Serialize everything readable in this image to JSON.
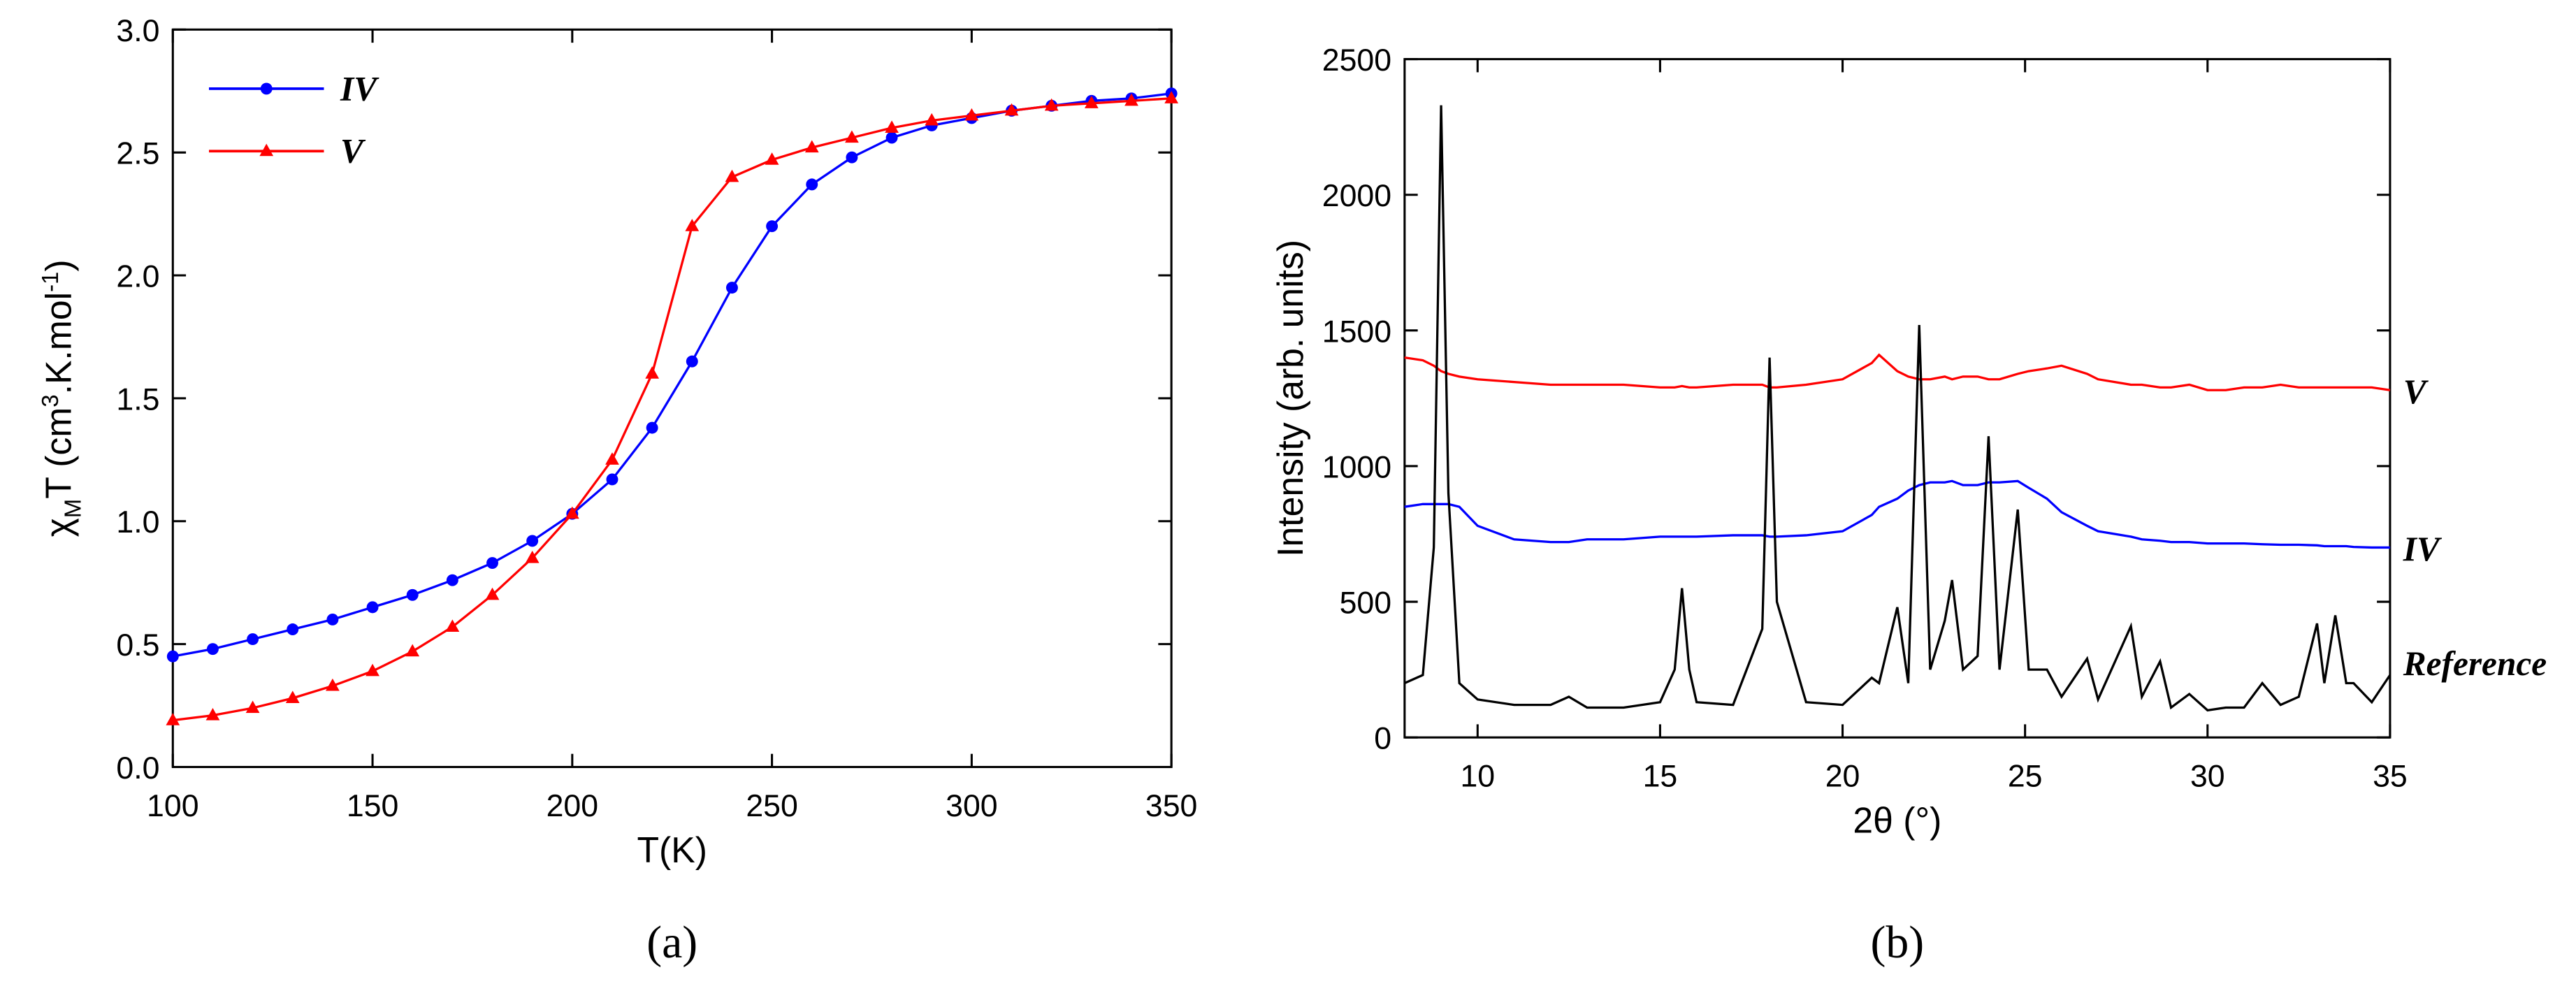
{
  "chart_data": [
    {
      "type": "line",
      "caption": "(a)",
      "xlabel": "T(K)",
      "ylabel_parts": [
        "χ",
        "M",
        "T (cm",
        "3",
        ".K.mol",
        "-1",
        ")"
      ],
      "x": [
        100,
        110,
        120,
        130,
        140,
        150,
        160,
        170,
        180,
        190,
        200,
        210,
        220,
        230,
        240,
        250,
        260,
        270,
        280,
        290,
        300,
        310,
        320,
        330,
        340,
        350
      ],
      "series": [
        {
          "name": "IV",
          "color": "#0000ff",
          "marker": "circle",
          "values": [
            0.45,
            0.48,
            0.52,
            0.56,
            0.6,
            0.65,
            0.7,
            0.76,
            0.83,
            0.92,
            1.03,
            1.17,
            1.38,
            1.65,
            1.95,
            2.2,
            2.37,
            2.48,
            2.56,
            2.61,
            2.64,
            2.67,
            2.69,
            2.71,
            2.72,
            2.74
          ]
        },
        {
          "name": "V",
          "color": "#ff0000",
          "marker": "triangle",
          "values": [
            0.19,
            0.21,
            0.24,
            0.28,
            0.33,
            0.39,
            0.47,
            0.57,
            0.7,
            0.85,
            1.03,
            1.25,
            1.6,
            2.2,
            2.4,
            2.47,
            2.52,
            2.56,
            2.6,
            2.63,
            2.65,
            2.67,
            2.69,
            2.7,
            2.71,
            2.72
          ]
        }
      ],
      "xlim": [
        100,
        350
      ],
      "xticks": [
        100,
        150,
        200,
        250,
        300,
        350
      ],
      "ylim": [
        0,
        3
      ],
      "yticks": [
        {
          "value": 0,
          "label": "0.0"
        },
        {
          "value": 0.5,
          "label": "0.5"
        },
        {
          "value": 1,
          "label": "1.0"
        },
        {
          "value": 1.5,
          "label": "1.5"
        },
        {
          "value": 2,
          "label": "2.0"
        },
        {
          "value": 2.5,
          "label": "2.5"
        },
        {
          "value": 3,
          "label": "3.0"
        }
      ],
      "legend": "upper left"
    },
    {
      "type": "line",
      "caption": "(b)",
      "xlabel": "2θ (°)",
      "ylabel": "Intensity (arb. units)",
      "x": [
        8,
        8.5,
        8.8,
        9.0,
        9.2,
        9.5,
        10,
        11,
        12,
        12.5,
        13,
        14,
        15,
        15.4,
        15.6,
        15.8,
        16,
        17,
        17.8,
        18.0,
        18.2,
        19,
        20,
        20.8,
        21.0,
        21.5,
        21.8,
        22.1,
        22.4,
        22.8,
        23.0,
        23.3,
        23.7,
        24.0,
        24.3,
        24.8,
        25.1,
        25.6,
        26,
        26.7,
        27,
        27.9,
        28.2,
        28.7,
        29,
        29.5,
        30,
        30.5,
        31,
        31.5,
        32,
        32.5,
        33.0,
        33.2,
        33.5,
        33.8,
        34,
        34.5,
        35
      ],
      "series": [
        {
          "name": "V",
          "color": "#ff0000",
          "values": [
            1400,
            1390,
            1370,
            1350,
            1340,
            1330,
            1320,
            1310,
            1300,
            1300,
            1300,
            1300,
            1290,
            1290,
            1295,
            1290,
            1290,
            1300,
            1300,
            1290,
            1290,
            1300,
            1320,
            1380,
            1410,
            1350,
            1330,
            1320,
            1320,
            1330,
            1320,
            1330,
            1330,
            1320,
            1320,
            1340,
            1350,
            1360,
            1370,
            1340,
            1320,
            1300,
            1300,
            1290,
            1290,
            1300,
            1280,
            1280,
            1290,
            1290,
            1300,
            1290,
            1290,
            1290,
            1290,
            1290,
            1290,
            1290,
            1280
          ]
        },
        {
          "name": "IV",
          "color": "#0000ff",
          "values": [
            850,
            860,
            860,
            860,
            860,
            850,
            780,
            730,
            720,
            720,
            730,
            730,
            740,
            740,
            740,
            740,
            740,
            745,
            745,
            740,
            740,
            745,
            760,
            820,
            850,
            880,
            910,
            930,
            940,
            940,
            945,
            930,
            930,
            940,
            940,
            945,
            920,
            880,
            830,
            780,
            760,
            740,
            730,
            725,
            720,
            720,
            715,
            715,
            715,
            712,
            710,
            710,
            708,
            705,
            705,
            705,
            702,
            700,
            700
          ]
        },
        {
          "name": "Reference",
          "color": "#000000",
          "values": [
            200,
            230,
            700,
            2330,
            900,
            200,
            140,
            120,
            120,
            150,
            110,
            110,
            130,
            250,
            550,
            250,
            130,
            120,
            400,
            1400,
            500,
            130,
            120,
            220,
            200,
            480,
            200,
            1520,
            250,
            430,
            580,
            250,
            300,
            1110,
            250,
            840,
            250,
            250,
            150,
            290,
            140,
            410,
            150,
            280,
            110,
            160,
            100,
            110,
            110,
            200,
            120,
            150,
            420,
            200,
            450,
            200,
            200,
            130,
            230
          ]
        }
      ],
      "xlim": [
        8,
        35
      ],
      "xticks": [
        10,
        15,
        20,
        25,
        30,
        35
      ],
      "ylim": [
        0,
        2500
      ],
      "yticks": [
        0,
        500,
        1000,
        1500,
        2000,
        2500
      ]
    }
  ]
}
